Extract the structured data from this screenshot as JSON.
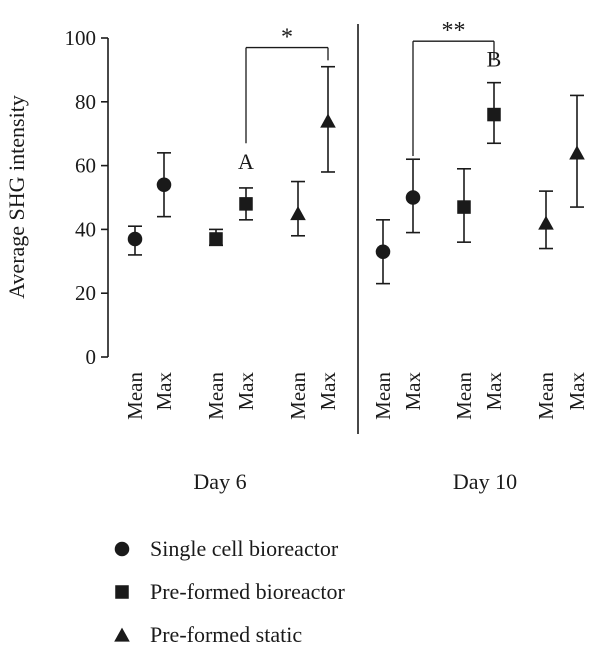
{
  "chart_data": {
    "type": "scatter",
    "ylabel": "Average SHG intensity",
    "ylim": [
      0,
      100
    ],
    "yticks": [
      0,
      20,
      40,
      60,
      80,
      100
    ],
    "groups": [
      {
        "label": "Day 6",
        "categories": [
          "Mean",
          "Max",
          "Mean",
          "Max",
          "Mean",
          "Max"
        ]
      },
      {
        "label": "Day 10",
        "categories": [
          "Mean",
          "Max",
          "Mean",
          "Max",
          "Mean",
          "Max"
        ]
      }
    ],
    "legend_position": "bottom-left",
    "series": [
      {
        "name": "Single cell bioreactor",
        "marker": "circle",
        "points": [
          {
            "group": 0,
            "slot": 0,
            "y": 37,
            "low": 32,
            "high": 41
          },
          {
            "group": 0,
            "slot": 1,
            "y": 54,
            "low": 44,
            "high": 64
          },
          {
            "group": 1,
            "slot": 0,
            "y": 33,
            "low": 23,
            "high": 43
          },
          {
            "group": 1,
            "slot": 1,
            "y": 50,
            "low": 39,
            "high": 62
          }
        ]
      },
      {
        "name": "Pre-formed bioreactor",
        "marker": "square",
        "points": [
          {
            "group": 0,
            "slot": 2,
            "y": 37,
            "low": 35,
            "high": 40
          },
          {
            "group": 0,
            "slot": 3,
            "y": 48,
            "low": 43,
            "high": 53
          },
          {
            "group": 1,
            "slot": 2,
            "y": 47,
            "low": 36,
            "high": 59
          },
          {
            "group": 1,
            "slot": 3,
            "y": 76,
            "low": 67,
            "high": 86
          }
        ]
      },
      {
        "name": "Pre-formed static",
        "marker": "triangle",
        "points": [
          {
            "group": 0,
            "slot": 4,
            "y": 45,
            "low": 38,
            "high": 55
          },
          {
            "group": 0,
            "slot": 5,
            "y": 74,
            "low": 58,
            "high": 91
          },
          {
            "group": 1,
            "slot": 4,
            "y": 42,
            "low": 34,
            "high": 52
          },
          {
            "group": 1,
            "slot": 5,
            "y": 64,
            "low": 47,
            "high": 82
          }
        ]
      }
    ],
    "annotations": [
      {
        "text": "A",
        "group": 0,
        "slot": 3,
        "y": 59
      },
      {
        "text": "B",
        "group": 1,
        "slot": 3,
        "y": 91
      }
    ],
    "significance": [
      {
        "label": "*",
        "group": 0,
        "from_slot": 3,
        "to_slot": 5,
        "y": 97,
        "drop_from": 67,
        "drop_to": 93
      },
      {
        "label": "**",
        "group": 1,
        "from_slot": 1,
        "to_slot": 3,
        "y": 99,
        "drop_from": 63,
        "drop_to": 93
      }
    ]
  }
}
